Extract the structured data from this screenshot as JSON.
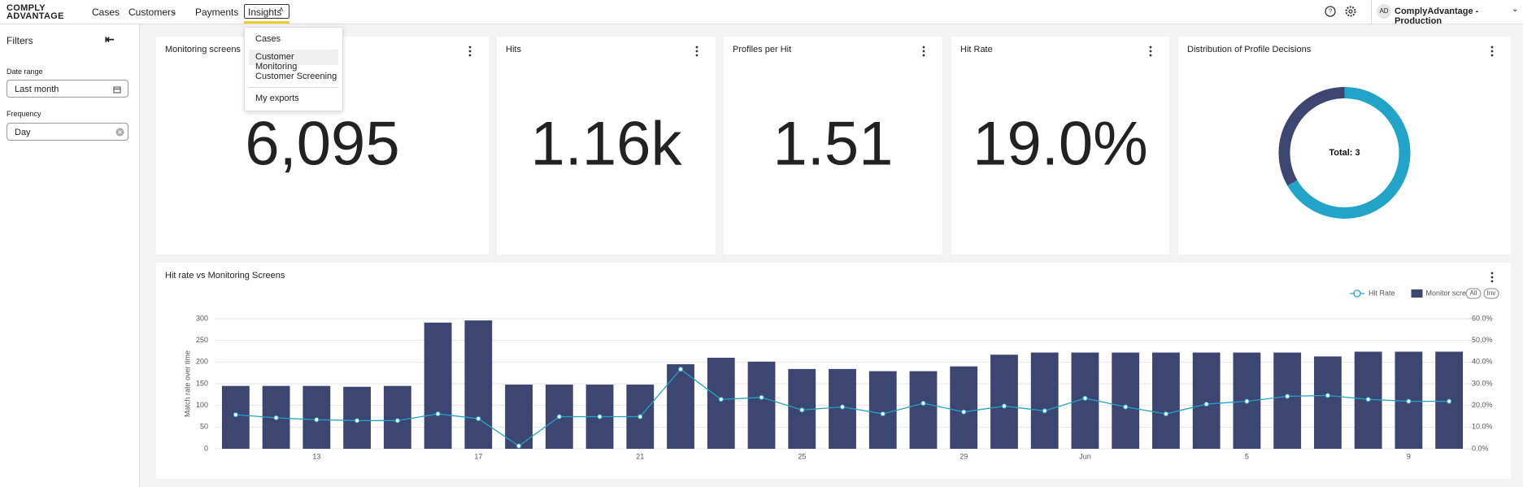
{
  "nav": {
    "logo": [
      "COMPLY",
      "ADVANTAGE"
    ],
    "items": [
      "Cases",
      "Customers",
      "Payments",
      "Insights"
    ],
    "dropdown": [
      "Cases",
      "Customer Monitoring",
      "Customer Screening",
      "My exports"
    ],
    "user_initials": "AD",
    "account": "ComplyAdvantage - Production"
  },
  "sidebar": {
    "title": "Filters",
    "filters": [
      {
        "label": "Date range",
        "value": "Last month"
      },
      {
        "label": "Frequency",
        "value": "Day"
      }
    ]
  },
  "cards": [
    {
      "title": "Monitoring screens",
      "value": "6,095"
    },
    {
      "title": "Hits",
      "value": "1.16k"
    },
    {
      "title": "Profiles per Hit",
      "value": "1.51"
    },
    {
      "title": "Hit Rate",
      "value": "19.0%"
    },
    {
      "title": "Distribution of Profile Decisions",
      "type": "pie",
      "values": [
        2,
        1
      ],
      "colors": [
        "#22a3c8",
        "#3d4670"
      ],
      "center_label": "Total: 3"
    }
  ],
  "chart_data": {
    "type": "bar",
    "title": "Hit rate vs Monitoring Screens",
    "y_label": "Match rate over time",
    "categories": [
      null,
      null,
      "13",
      null,
      null,
      null,
      "17",
      null,
      null,
      null,
      "21",
      null,
      null,
      null,
      "25",
      null,
      null,
      null,
      "29",
      null,
      null,
      "Jun",
      null,
      null,
      null,
      "5",
      null,
      null,
      null,
      "9",
      null
    ],
    "series": [
      {
        "name": "Hit Rate",
        "type": "line",
        "axis": "y2",
        "color": "#22a3c8",
        "values": [
          15.7,
          14.3,
          13.4,
          13.0,
          13.0,
          16.1,
          13.9,
          1.3,
          14.8,
          14.8,
          14.8,
          36.7,
          22.8,
          23.7,
          17.9,
          19.3,
          16.1,
          21.0,
          17.0,
          19.7,
          17.5,
          23.3,
          19.3,
          16.1,
          20.6,
          21.9,
          24.2,
          24.6,
          22.8,
          21.9,
          21.9
        ]
      },
      {
        "name": "Monitor screens",
        "type": "bar",
        "color": "#3d4670",
        "values": [
          145,
          145,
          145,
          143,
          145,
          291,
          296,
          148,
          148,
          148,
          148,
          195,
          210,
          201,
          184,
          184,
          179,
          179,
          190,
          217,
          222,
          222,
          222,
          222,
          222,
          222,
          222,
          213,
          224,
          224,
          224
        ]
      }
    ],
    "ylim": [
      0,
      300
    ],
    "yticks": [
      0,
      50,
      100,
      150,
      200,
      250,
      300
    ],
    "y2lim": [
      0,
      60
    ],
    "y2ticks": [
      {
        "value": 0,
        "label": "0.0%"
      },
      {
        "value": 10,
        "label": "10.0%"
      },
      {
        "value": 20,
        "label": "20.0%"
      },
      {
        "value": 30,
        "label": "30.0%"
      },
      {
        "value": 40,
        "label": "40.0%"
      },
      {
        "value": 50,
        "label": "50.0%"
      },
      {
        "value": 60,
        "label": "60.0%"
      }
    ],
    "grid": true,
    "legend_buttons": [
      "All",
      "Inv"
    ]
  }
}
